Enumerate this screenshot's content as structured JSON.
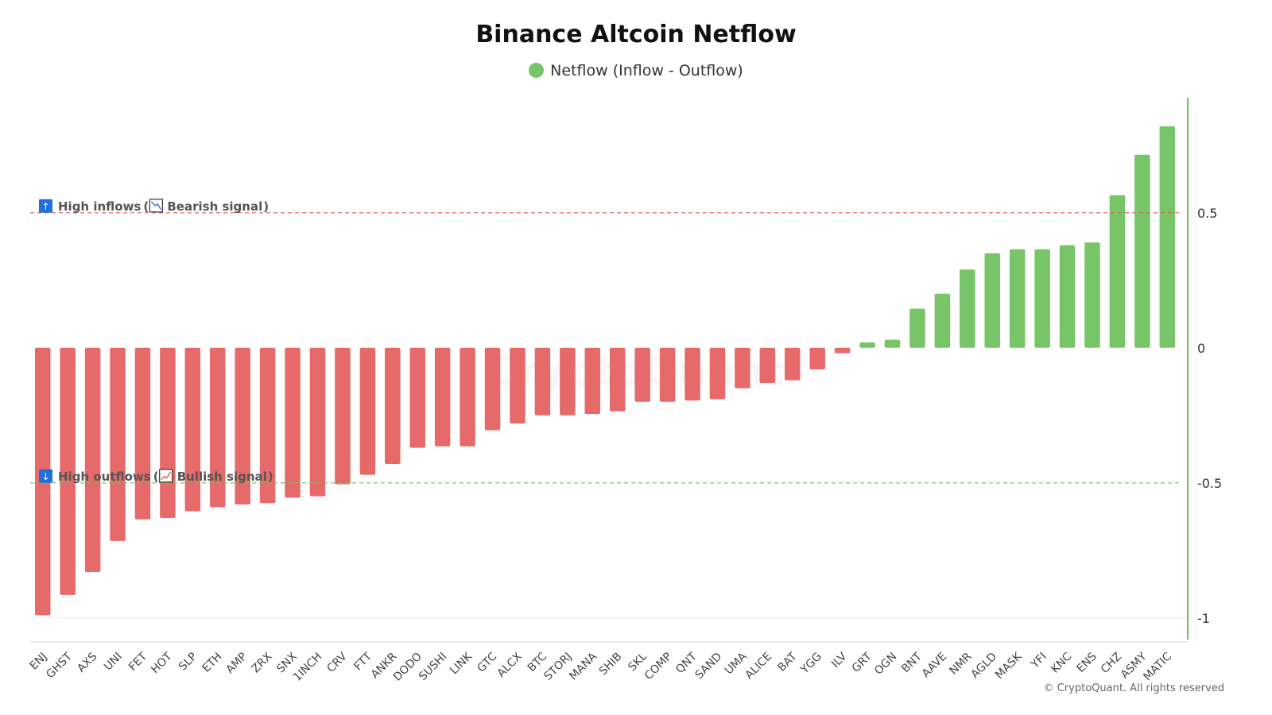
{
  "chart_data": {
    "type": "bar",
    "title": "Binance Altcoin Netflow",
    "legend": {
      "label": "Netflow (Inflow - Outflow)",
      "placement": "top-center"
    },
    "categories": [
      "ENJ",
      "GHST",
      "AXS",
      "UNI",
      "FET",
      "HOT",
      "SLP",
      "ETH",
      "AMP",
      "ZRX",
      "SNX",
      "1INCH",
      "CRV",
      "FTT",
      "ANKR",
      "DODO",
      "SUSHI",
      "LINK",
      "GTC",
      "ALCX",
      "BTC",
      "STORJ",
      "MANA",
      "SHIB",
      "SKL",
      "COMP",
      "QNT",
      "SAND",
      "UMA",
      "ALICE",
      "BAT",
      "YGG",
      "ILV",
      "GRT",
      "OGN",
      "BNT",
      "AAVE",
      "NMR",
      "AGLD",
      "MASK",
      "YFI",
      "KNC",
      "ENS",
      "CHZ",
      "ASMY",
      "MATIC"
    ],
    "values": [
      -0.99,
      -0.915,
      -0.83,
      -0.715,
      -0.635,
      -0.63,
      -0.605,
      -0.59,
      -0.58,
      -0.575,
      -0.555,
      -0.55,
      -0.505,
      -0.47,
      -0.43,
      -0.37,
      -0.365,
      -0.365,
      -0.305,
      -0.28,
      -0.25,
      -0.25,
      -0.245,
      -0.235,
      -0.2,
      -0.2,
      -0.195,
      -0.19,
      -0.15,
      -0.13,
      -0.12,
      -0.08,
      -0.02,
      0.02,
      0.03,
      0.145,
      0.2,
      0.29,
      0.35,
      0.365,
      0.365,
      0.38,
      0.39,
      0.565,
      0.715,
      0.82
    ],
    "ylim": [
      -1.08,
      0.92
    ],
    "yticks": [
      0.5,
      0,
      -0.5,
      -1
    ],
    "ytick_labels": [
      "0.5",
      "0",
      "-0.5",
      "-1"
    ],
    "y_axis_side": "right",
    "thresholds": [
      {
        "value": 0.5,
        "color": "#e06060",
        "label_main": "High inflows",
        "label_signal": "Bearish signal",
        "arrow": "↑",
        "signal_icon": "chart-down"
      },
      {
        "value": -0.5,
        "color": "#6cbf5c",
        "label_main": "High outflows",
        "label_signal": "Bullish signal",
        "arrow": "↓",
        "signal_icon": "chart-up"
      }
    ],
    "grid": false
  },
  "colors": {
    "positive": "#77c567",
    "negative": "#e76a6a",
    "axis": "#6cbf5c",
    "annotation_icon": "#1e6fd9"
  },
  "footer": {
    "copyright": "© CryptoQuant. All rights reserved"
  },
  "watermark": "CryptoQuant"
}
